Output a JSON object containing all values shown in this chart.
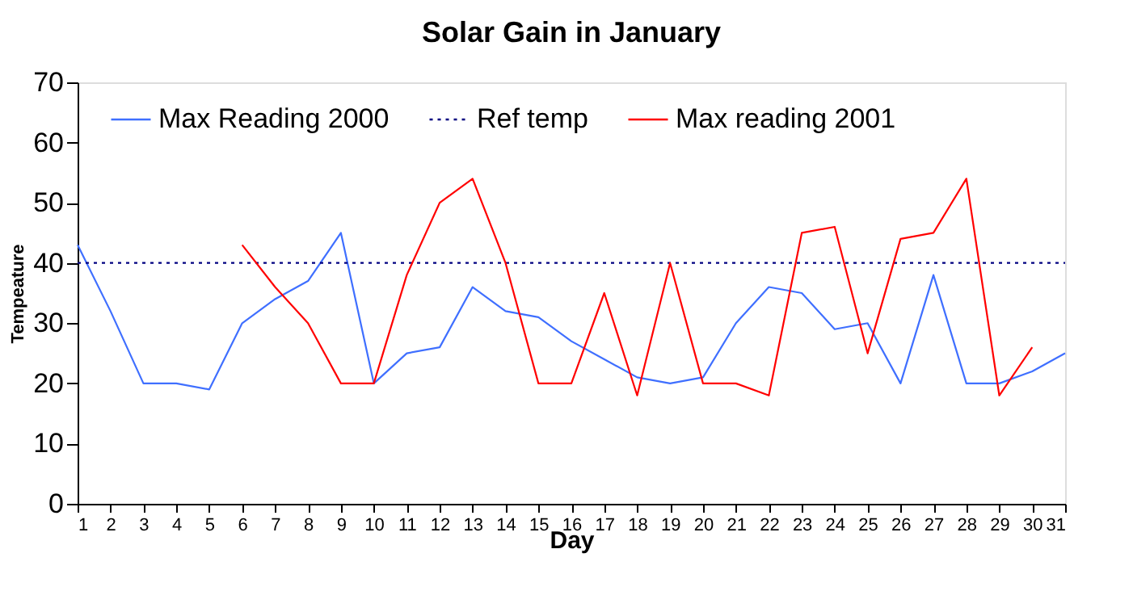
{
  "chart_data": {
    "type": "line",
    "title": "Solar Gain in January",
    "xlabel": "Day",
    "ylabel": "Tempeature",
    "x": [
      1,
      2,
      3,
      4,
      5,
      6,
      7,
      8,
      9,
      10,
      11,
      12,
      13,
      14,
      15,
      16,
      17,
      18,
      19,
      20,
      21,
      22,
      23,
      24,
      25,
      26,
      27,
      28,
      29,
      30,
      31
    ],
    "series": [
      {
        "name": "Max Reading 2000",
        "color": "#3f6fff",
        "values": [
          43,
          32,
          20,
          20,
          19,
          30,
          34,
          37,
          45,
          20,
          25,
          26,
          36,
          32,
          31,
          27,
          24,
          21,
          20,
          21,
          30,
          36,
          35,
          29,
          30,
          20,
          38,
          20,
          20,
          22,
          25
        ]
      },
      {
        "name": "Max reading 2001",
        "color": "#ff0000",
        "values": [
          null,
          null,
          null,
          null,
          null,
          43,
          36,
          30,
          20,
          20,
          38,
          50,
          54,
          40,
          20,
          20,
          35,
          18,
          40,
          20,
          20,
          18,
          45,
          46,
          25,
          44,
          45,
          54,
          18,
          26,
          null
        ]
      }
    ],
    "ref_lines": [
      {
        "axis": "y",
        "value": 40,
        "label": "Ref temp",
        "color": "#000080",
        "line_style": "dotted"
      }
    ],
    "xlim": [
      1,
      31
    ],
    "xticks": [
      1,
      2,
      3,
      4,
      5,
      6,
      7,
      8,
      9,
      10,
      11,
      12,
      13,
      14,
      15,
      16,
      17,
      18,
      19,
      20,
      21,
      22,
      23,
      24,
      25,
      26,
      27,
      28,
      29,
      30,
      31
    ],
    "ylim": [
      0,
      70
    ],
    "yticks": [
      0,
      10,
      20,
      30,
      40,
      50,
      60,
      70
    ],
    "grid": false,
    "legend": "top",
    "marker": "none",
    "line_style": "solid"
  }
}
